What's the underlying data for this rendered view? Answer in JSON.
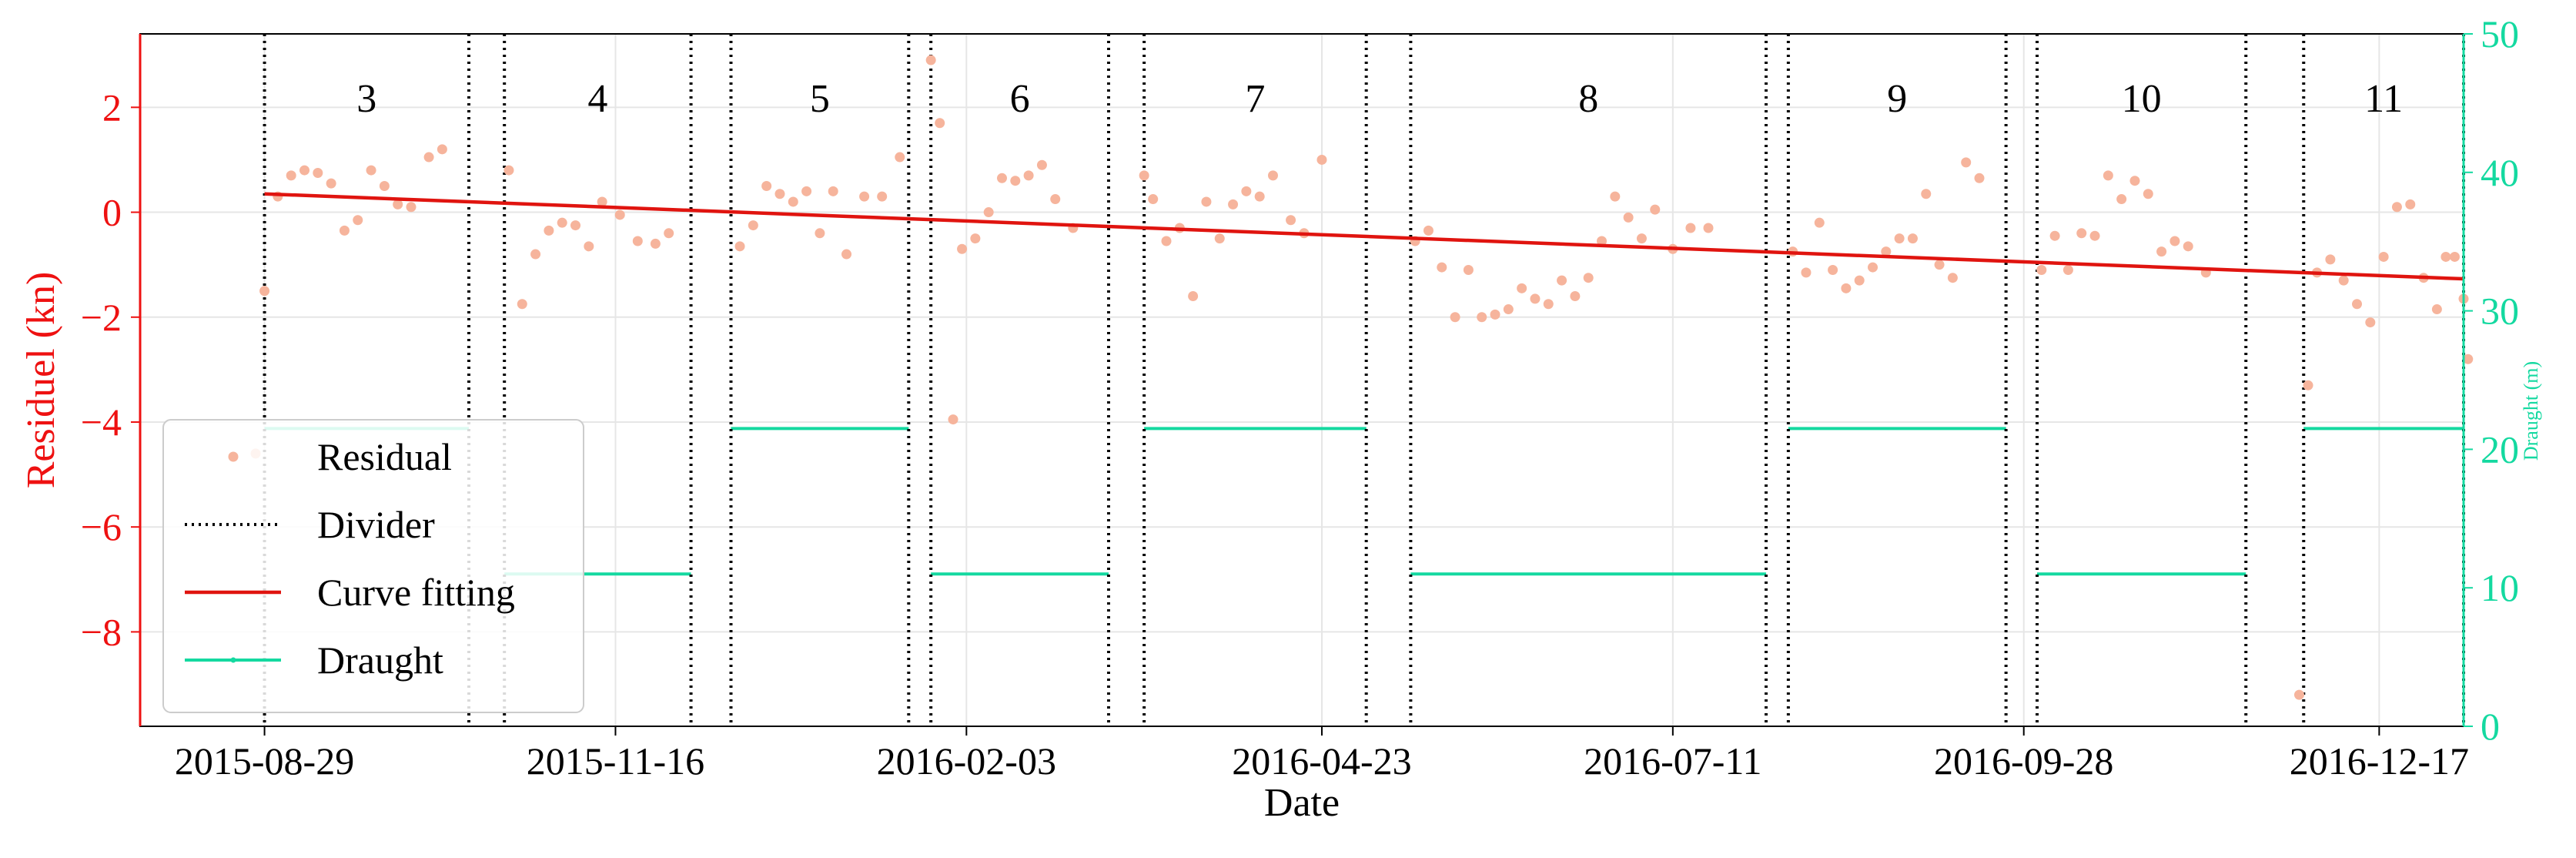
{
  "chart_data": {
    "type": "scatter",
    "x_axis": {
      "label": "Date",
      "range": [
        "2015-08-01",
        "2017-01-05"
      ],
      "ticks": [
        "2015-08-29",
        "2015-11-16",
        "2016-02-03",
        "2016-04-23",
        "2016-07-11",
        "2016-09-28",
        "2016-12-17"
      ]
    },
    "y_left": {
      "label": "Residuel (kn)",
      "range": [
        -9.8,
        3.4
      ],
      "ticks": [
        2,
        0,
        -2,
        -4,
        -6,
        -8
      ],
      "color": "#ee1111"
    },
    "y_right": {
      "label": "Draught (m)",
      "range": [
        0,
        50
      ],
      "ticks": [
        0,
        10,
        20,
        30,
        40,
        50
      ],
      "color": "#14d9a0"
    },
    "grid": true,
    "legend": {
      "position": "lower-left",
      "entries": [
        {
          "label": "Residual",
          "marker": "dot"
        },
        {
          "label": "Divider",
          "marker": "dotted-line"
        },
        {
          "label": "Curve fitting",
          "marker": "line"
        },
        {
          "label": "Draught",
          "marker": "line-dot"
        }
      ]
    },
    "segments": [
      {
        "label": "3",
        "start": "2015-08-29",
        "end": "2015-10-14",
        "draught": 21.5
      },
      {
        "label": "4",
        "start": "2015-10-22",
        "end": "2015-12-03",
        "draught": 11
      },
      {
        "label": "5",
        "start": "2015-12-12",
        "end": "2016-01-21",
        "draught": 21.5
      },
      {
        "label": "6",
        "start": "2016-01-26",
        "end": "2016-03-06",
        "draught": 11
      },
      {
        "label": "7",
        "start": "2016-03-14",
        "end": "2016-05-03",
        "draught": 21.5
      },
      {
        "label": "8",
        "start": "2016-05-13",
        "end": "2016-08-01",
        "draught": 11
      },
      {
        "label": "9",
        "start": "2016-08-06",
        "end": "2016-09-24",
        "draught": 21.5
      },
      {
        "label": "10",
        "start": "2016-10-01",
        "end": "2016-11-17",
        "draught": 11
      },
      {
        "label": "11",
        "start": "2016-11-30",
        "end": "2017-01-05",
        "draught": 21.5
      }
    ],
    "curve_fitting": {
      "x": [
        "2015-08-29",
        "2017-01-05"
      ],
      "y": [
        0.35,
        -1.27
      ]
    },
    "residual": [
      {
        "x": "2015-08-27",
        "y": -4.6
      },
      {
        "x": "2015-08-29",
        "y": -1.5
      },
      {
        "x": "2015-09-01",
        "y": 0.3
      },
      {
        "x": "2015-09-04",
        "y": 0.7
      },
      {
        "x": "2015-09-07",
        "y": 0.8
      },
      {
        "x": "2015-09-10",
        "y": 0.75
      },
      {
        "x": "2015-09-13",
        "y": 0.55
      },
      {
        "x": "2015-09-16",
        "y": -0.35
      },
      {
        "x": "2015-09-19",
        "y": -0.15
      },
      {
        "x": "2015-09-22",
        "y": 0.8
      },
      {
        "x": "2015-09-25",
        "y": 0.5
      },
      {
        "x": "2015-09-28",
        "y": 0.15
      },
      {
        "x": "2015-10-01",
        "y": 0.1
      },
      {
        "x": "2015-10-05",
        "y": 1.05
      },
      {
        "x": "2015-10-08",
        "y": 1.2
      },
      {
        "x": "2015-10-23",
        "y": 0.8
      },
      {
        "x": "2015-10-26",
        "y": -1.75
      },
      {
        "x": "2015-10-29",
        "y": -0.8
      },
      {
        "x": "2015-11-01",
        "y": -0.35
      },
      {
        "x": "2015-11-04",
        "y": -0.2
      },
      {
        "x": "2015-11-07",
        "y": -0.25
      },
      {
        "x": "2015-11-10",
        "y": -0.65
      },
      {
        "x": "2015-11-13",
        "y": 0.2
      },
      {
        "x": "2015-11-17",
        "y": -0.05
      },
      {
        "x": "2015-11-21",
        "y": -0.55
      },
      {
        "x": "2015-11-25",
        "y": -0.6
      },
      {
        "x": "2015-11-28",
        "y": -0.4
      },
      {
        "x": "2015-12-14",
        "y": -0.65
      },
      {
        "x": "2015-12-17",
        "y": -0.25
      },
      {
        "x": "2015-12-20",
        "y": 0.5
      },
      {
        "x": "2015-12-23",
        "y": 0.35
      },
      {
        "x": "2015-12-26",
        "y": 0.2
      },
      {
        "x": "2015-12-29",
        "y": 0.4
      },
      {
        "x": "2016-01-01",
        "y": -0.4
      },
      {
        "x": "2016-01-04",
        "y": 0.4
      },
      {
        "x": "2016-01-07",
        "y": -0.8
      },
      {
        "x": "2016-01-11",
        "y": 0.3
      },
      {
        "x": "2016-01-15",
        "y": 0.3
      },
      {
        "x": "2016-01-19",
        "y": 1.05
      },
      {
        "x": "2016-01-26",
        "y": 2.9
      },
      {
        "x": "2016-01-28",
        "y": 1.7
      },
      {
        "x": "2016-01-31",
        "y": -3.95
      },
      {
        "x": "2016-02-02",
        "y": -0.7
      },
      {
        "x": "2016-02-05",
        "y": -0.5
      },
      {
        "x": "2016-02-08",
        "y": 0.0
      },
      {
        "x": "2016-02-11",
        "y": 0.65
      },
      {
        "x": "2016-02-14",
        "y": 0.6
      },
      {
        "x": "2016-02-17",
        "y": 0.7
      },
      {
        "x": "2016-02-20",
        "y": 0.9
      },
      {
        "x": "2016-02-23",
        "y": 0.25
      },
      {
        "x": "2016-02-27",
        "y": -0.3
      },
      {
        "x": "2016-03-14",
        "y": 0.7
      },
      {
        "x": "2016-03-16",
        "y": 0.25
      },
      {
        "x": "2016-03-19",
        "y": -0.55
      },
      {
        "x": "2016-03-22",
        "y": -0.3
      },
      {
        "x": "2016-03-25",
        "y": -1.6
      },
      {
        "x": "2016-03-28",
        "y": 0.2
      },
      {
        "x": "2016-03-31",
        "y": -0.5
      },
      {
        "x": "2016-04-03",
        "y": 0.15
      },
      {
        "x": "2016-04-06",
        "y": 0.4
      },
      {
        "x": "2016-04-09",
        "y": 0.3
      },
      {
        "x": "2016-04-12",
        "y": 0.7
      },
      {
        "x": "2016-04-16",
        "y": -0.15
      },
      {
        "x": "2016-04-19",
        "y": -0.4
      },
      {
        "x": "2016-04-23",
        "y": 1.0
      },
      {
        "x": "2016-05-14",
        "y": -0.55
      },
      {
        "x": "2016-05-17",
        "y": -0.35
      },
      {
        "x": "2016-05-20",
        "y": -1.05
      },
      {
        "x": "2016-05-23",
        "y": -2.0
      },
      {
        "x": "2016-05-26",
        "y": -1.1
      },
      {
        "x": "2016-05-29",
        "y": -2.0
      },
      {
        "x": "2016-06-01",
        "y": -1.95
      },
      {
        "x": "2016-06-04",
        "y": -1.85
      },
      {
        "x": "2016-06-07",
        "y": -1.45
      },
      {
        "x": "2016-06-10",
        "y": -1.65
      },
      {
        "x": "2016-06-13",
        "y": -1.75
      },
      {
        "x": "2016-06-16",
        "y": -1.3
      },
      {
        "x": "2016-06-19",
        "y": -1.6
      },
      {
        "x": "2016-06-22",
        "y": -1.25
      },
      {
        "x": "2016-06-25",
        "y": -0.55
      },
      {
        "x": "2016-06-28",
        "y": 0.3
      },
      {
        "x": "2016-07-01",
        "y": -0.1
      },
      {
        "x": "2016-07-04",
        "y": -0.5
      },
      {
        "x": "2016-07-07",
        "y": 0.05
      },
      {
        "x": "2016-07-11",
        "y": -0.7
      },
      {
        "x": "2016-07-15",
        "y": -0.3
      },
      {
        "x": "2016-07-19",
        "y": -0.3
      },
      {
        "x": "2016-08-07",
        "y": -0.75
      },
      {
        "x": "2016-08-10",
        "y": -1.15
      },
      {
        "x": "2016-08-13",
        "y": -0.2
      },
      {
        "x": "2016-08-16",
        "y": -1.1
      },
      {
        "x": "2016-08-19",
        "y": -1.45
      },
      {
        "x": "2016-08-22",
        "y": -1.3
      },
      {
        "x": "2016-08-25",
        "y": -1.05
      },
      {
        "x": "2016-08-28",
        "y": -0.75
      },
      {
        "x": "2016-08-31",
        "y": -0.5
      },
      {
        "x": "2016-09-03",
        "y": -0.5
      },
      {
        "x": "2016-09-06",
        "y": 0.35
      },
      {
        "x": "2016-09-09",
        "y": -1.0
      },
      {
        "x": "2016-09-12",
        "y": -1.25
      },
      {
        "x": "2016-09-15",
        "y": 0.95
      },
      {
        "x": "2016-09-18",
        "y": 0.65
      },
      {
        "x": "2016-10-02",
        "y": -1.1
      },
      {
        "x": "2016-10-05",
        "y": -0.45
      },
      {
        "x": "2016-10-08",
        "y": -1.1
      },
      {
        "x": "2016-10-11",
        "y": -0.4
      },
      {
        "x": "2016-10-14",
        "y": -0.45
      },
      {
        "x": "2016-10-17",
        "y": 0.7
      },
      {
        "x": "2016-10-20",
        "y": 0.25
      },
      {
        "x": "2016-10-23",
        "y": 0.6
      },
      {
        "x": "2016-10-26",
        "y": 0.35
      },
      {
        "x": "2016-10-29",
        "y": -0.75
      },
      {
        "x": "2016-11-01",
        "y": -0.55
      },
      {
        "x": "2016-11-04",
        "y": -0.65
      },
      {
        "x": "2016-11-08",
        "y": -1.15
      },
      {
        "x": "2016-11-29",
        "y": -9.2
      },
      {
        "x": "2016-12-01",
        "y": -3.3
      },
      {
        "x": "2016-12-03",
        "y": -1.15
      },
      {
        "x": "2016-12-06",
        "y": -0.9
      },
      {
        "x": "2016-12-09",
        "y": -1.3
      },
      {
        "x": "2016-12-12",
        "y": -1.75
      },
      {
        "x": "2016-12-15",
        "y": -2.1
      },
      {
        "x": "2016-12-18",
        "y": -0.85
      },
      {
        "x": "2016-12-21",
        "y": 0.1
      },
      {
        "x": "2016-12-24",
        "y": 0.15
      },
      {
        "x": "2016-12-27",
        "y": -1.25
      },
      {
        "x": "2016-12-30",
        "y": -1.85
      },
      {
        "x": "2017-01-01",
        "y": -0.85
      },
      {
        "x": "2017-01-03",
        "y": -0.85
      },
      {
        "x": "2017-01-05",
        "y": -1.65
      },
      {
        "x": "2017-01-06",
        "y": -2.8
      }
    ]
  },
  "colors": {
    "residual": "#f6b49c",
    "divider": "#000000",
    "curve": "#e0140f",
    "draught": "#14d9a0",
    "left_axis": "#ee1111",
    "right_axis": "#14d9a0"
  }
}
